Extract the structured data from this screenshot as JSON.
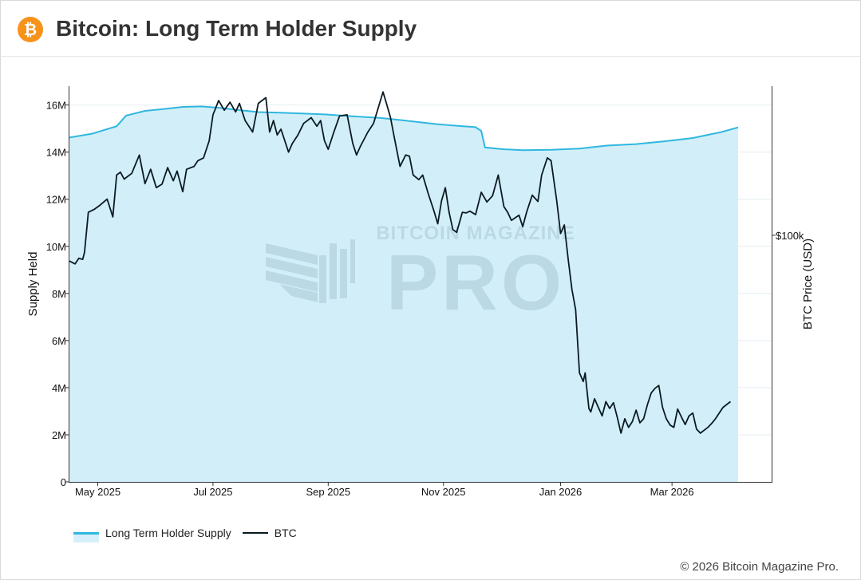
{
  "header": {
    "title": "Bitcoin: Long Term Holder Supply",
    "logo_glyph": "₿",
    "logo_color": "#f7931a"
  },
  "footer": {
    "copyright": "© 2026 Bitcoin Magazine Pro."
  },
  "watermark": {
    "line1": "BITCOIN MAGAZINE",
    "line2": "PRO"
  },
  "legend": {
    "lth_label": "Long Term Holder Supply",
    "btc_label": "BTC"
  },
  "colors": {
    "lth_line": "#30b7df",
    "lth_fill": "#d2eff9",
    "btc_line": "#0b1a22"
  },
  "chart_data": {
    "type": "line",
    "title": "Bitcoin: Long Term Holder Supply",
    "xlabel": "",
    "ylabel": "Supply Held",
    "y2label": "BTC Price (USD)",
    "ylim": [
      0,
      16800000
    ],
    "y_ticks": [
      0,
      2000000,
      4000000,
      6000000,
      8000000,
      10000000,
      12000000,
      14000000,
      16000000
    ],
    "y_tick_labels": [
      "0",
      "2M",
      "4M",
      "6M",
      "8M",
      "10M",
      "12M",
      "14M",
      "16M"
    ],
    "y2_range": [
      57000,
      126000
    ],
    "y2_ticks": [
      100000
    ],
    "y2_tick_labels": [
      "$100k"
    ],
    "x_range": [
      0,
      354
    ],
    "x_ticks": [
      15,
      76,
      137,
      198,
      260,
      319
    ],
    "x_tick_labels": [
      "May 2025",
      "Jul 2025",
      "Sep 2025",
      "Nov 2025",
      "Jan 2026",
      "Mar 2026"
    ],
    "series": [
      {
        "name": "Long Term Holder Supply",
        "axis": "left",
        "points": [
          [
            0,
            14620000
          ],
          [
            12,
            14780000
          ],
          [
            25,
            15100000
          ],
          [
            30,
            15550000
          ],
          [
            40,
            15750000
          ],
          [
            50,
            15830000
          ],
          [
            60,
            15920000
          ],
          [
            70,
            15940000
          ],
          [
            80,
            15880000
          ],
          [
            90,
            15780000
          ],
          [
            100,
            15700000
          ],
          [
            110,
            15680000
          ],
          [
            120,
            15650000
          ],
          [
            135,
            15600000
          ],
          [
            150,
            15520000
          ],
          [
            165,
            15450000
          ],
          [
            180,
            15320000
          ],
          [
            195,
            15180000
          ],
          [
            205,
            15120000
          ],
          [
            215,
            15060000
          ],
          [
            218,
            14900000
          ],
          [
            220,
            14200000
          ],
          [
            230,
            14120000
          ],
          [
            240,
            14080000
          ],
          [
            255,
            14100000
          ],
          [
            270,
            14150000
          ],
          [
            285,
            14280000
          ],
          [
            300,
            14340000
          ],
          [
            315,
            14460000
          ],
          [
            330,
            14600000
          ],
          [
            345,
            14850000
          ],
          [
            354,
            15050000
          ]
        ]
      },
      {
        "name": "BTC",
        "axis": "right",
        "points": [
          [
            0,
            95500
          ],
          [
            3,
            95000
          ],
          [
            5,
            96000
          ],
          [
            7,
            95800
          ],
          [
            8,
            97000
          ],
          [
            10,
            104000
          ],
          [
            13,
            104500
          ],
          [
            16,
            105200
          ],
          [
            20,
            106300
          ],
          [
            23,
            103200
          ],
          [
            25,
            110500
          ],
          [
            27,
            111000
          ],
          [
            29,
            109800
          ],
          [
            33,
            110800
          ],
          [
            37,
            114000
          ],
          [
            40,
            109000
          ],
          [
            43,
            111500
          ],
          [
            46,
            108300
          ],
          [
            49,
            108900
          ],
          [
            52,
            111800
          ],
          [
            55,
            109500
          ],
          [
            57,
            111200
          ],
          [
            60,
            107600
          ],
          [
            62,
            111500
          ],
          [
            66,
            112000
          ],
          [
            68,
            113000
          ],
          [
            71,
            113500
          ],
          [
            74,
            116500
          ],
          [
            76,
            121000
          ],
          [
            79,
            123500
          ],
          [
            82,
            121800
          ],
          [
            85,
            123200
          ],
          [
            88,
            121500
          ],
          [
            90,
            123000
          ],
          [
            93,
            120000
          ],
          [
            95,
            119000
          ],
          [
            97,
            118000
          ],
          [
            100,
            123000
          ],
          [
            104,
            124000
          ],
          [
            106,
            118000
          ],
          [
            108,
            120000
          ],
          [
            110,
            117500
          ],
          [
            112,
            118500
          ],
          [
            116,
            114500
          ],
          [
            118,
            116000
          ],
          [
            121,
            117500
          ],
          [
            124,
            119500
          ],
          [
            128,
            120500
          ],
          [
            131,
            119000
          ],
          [
            133,
            120000
          ],
          [
            135,
            116500
          ],
          [
            137,
            115000
          ],
          [
            140,
            118000
          ],
          [
            143,
            120800
          ],
          [
            147,
            121000
          ],
          [
            150,
            116000
          ],
          [
            152,
            114000
          ],
          [
            154,
            115500
          ],
          [
            158,
            118000
          ],
          [
            161,
            119500
          ],
          [
            163,
            121700
          ],
          [
            166,
            125000
          ],
          [
            168,
            122800
          ],
          [
            170,
            120500
          ],
          [
            172,
            117000
          ],
          [
            175,
            112000
          ],
          [
            178,
            114000
          ],
          [
            180,
            113800
          ],
          [
            182,
            110500
          ],
          [
            185,
            109700
          ],
          [
            187,
            110500
          ],
          [
            190,
            107200
          ],
          [
            193,
            104200
          ],
          [
            195,
            102000
          ],
          [
            197,
            106000
          ],
          [
            199,
            108300
          ],
          [
            201,
            104000
          ],
          [
            203,
            101000
          ],
          [
            205,
            100500
          ],
          [
            208,
            104000
          ],
          [
            210,
            103900
          ],
          [
            212,
            104200
          ],
          [
            215,
            103600
          ],
          [
            218,
            107500
          ],
          [
            221,
            105800
          ],
          [
            224,
            106900
          ],
          [
            227,
            110500
          ],
          [
            230,
            105000
          ],
          [
            232,
            104000
          ],
          [
            234,
            102600
          ],
          [
            238,
            103500
          ],
          [
            240,
            101500
          ],
          [
            242,
            104000
          ],
          [
            245,
            107000
          ],
          [
            248,
            105900
          ],
          [
            250,
            110500
          ],
          [
            253,
            113500
          ],
          [
            255,
            113000
          ],
          [
            258,
            106000
          ],
          [
            260,
            100300
          ],
          [
            262,
            101800
          ],
          [
            264,
            96000
          ],
          [
            266,
            90600
          ],
          [
            268,
            87000
          ],
          [
            270,
            76000
          ],
          [
            272,
            74500
          ],
          [
            273,
            76000
          ],
          [
            275,
            69800
          ],
          [
            276,
            69200
          ],
          [
            278,
            71500
          ],
          [
            280,
            70000
          ],
          [
            282,
            68500
          ],
          [
            284,
            71000
          ],
          [
            286,
            69800
          ],
          [
            288,
            70800
          ],
          [
            290,
            68300
          ],
          [
            292,
            65500
          ],
          [
            294,
            68000
          ],
          [
            296,
            66500
          ],
          [
            298,
            67500
          ],
          [
            300,
            69500
          ],
          [
            302,
            67300
          ],
          [
            304,
            68000
          ],
          [
            306,
            70500
          ],
          [
            308,
            72500
          ],
          [
            310,
            73300
          ],
          [
            312,
            73800
          ],
          [
            314,
            70000
          ],
          [
            316,
            68000
          ],
          [
            318,
            66900
          ],
          [
            320,
            66500
          ],
          [
            322,
            69700
          ],
          [
            324,
            68300
          ],
          [
            326,
            67000
          ],
          [
            328,
            68500
          ],
          [
            330,
            69000
          ],
          [
            332,
            66200
          ],
          [
            334,
            65500
          ],
          [
            336,
            66000
          ],
          [
            338,
            66500
          ],
          [
            340,
            67200
          ],
          [
            342,
            68000
          ],
          [
            344,
            69000
          ],
          [
            346,
            70000
          ],
          [
            348,
            70500
          ],
          [
            350,
            71000
          ]
        ]
      }
    ]
  }
}
